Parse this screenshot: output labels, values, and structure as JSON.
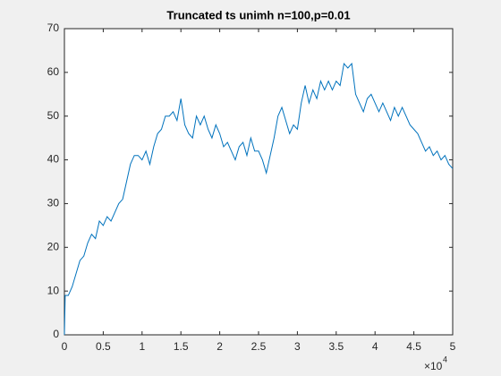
{
  "chart_data": {
    "type": "line",
    "title": "Truncated ts unimh n=100,p=0.01",
    "x": [
      0,
      0.01,
      0.05,
      0.1,
      0.15,
      0.2,
      0.25,
      0.3,
      0.35,
      0.4,
      0.45,
      0.5,
      0.55,
      0.6,
      0.65,
      0.7,
      0.75,
      0.8,
      0.85,
      0.9,
      0.95,
      1.0,
      1.05,
      1.1,
      1.15,
      1.2,
      1.25,
      1.3,
      1.35,
      1.4,
      1.45,
      1.5,
      1.55,
      1.6,
      1.65,
      1.7,
      1.75,
      1.8,
      1.85,
      1.9,
      1.95,
      2.0,
      2.05,
      2.1,
      2.15,
      2.2,
      2.25,
      2.3,
      2.35,
      2.4,
      2.45,
      2.5,
      2.55,
      2.6,
      2.65,
      2.7,
      2.75,
      2.8,
      2.85,
      2.9,
      2.95,
      3.0,
      3.05,
      3.1,
      3.15,
      3.2,
      3.25,
      3.3,
      3.35,
      3.4,
      3.45,
      3.5,
      3.55,
      3.6,
      3.65,
      3.7,
      3.75,
      3.8,
      3.85,
      3.9,
      3.95,
      4.0,
      4.05,
      4.1,
      4.15,
      4.2,
      4.25,
      4.3,
      4.35,
      4.4,
      4.45,
      4.5,
      4.55,
      4.6,
      4.65,
      4.7,
      4.75,
      4.8,
      4.85,
      4.9,
      4.95,
      5.0
    ],
    "values": [
      0,
      9,
      9,
      11,
      14,
      17,
      18,
      21,
      23,
      22,
      26,
      25,
      27,
      26,
      28,
      30,
      31,
      35,
      39,
      41,
      41,
      40,
      42,
      39,
      43,
      46,
      47,
      50,
      50,
      51,
      49,
      54,
      48,
      46,
      45,
      50,
      48,
      50,
      47,
      45,
      48,
      46,
      43,
      44,
      42,
      40,
      43,
      44,
      41,
      45,
      42,
      42,
      40,
      37,
      41,
      45,
      50,
      52,
      49,
      46,
      48,
      47,
      53,
      57,
      53,
      56,
      54,
      58,
      56,
      58,
      56,
      58,
      57,
      62,
      61,
      62,
      55,
      53,
      51,
      54,
      55,
      53,
      51,
      53,
      51,
      49,
      52,
      50,
      52,
      50,
      48,
      47,
      46,
      44,
      42,
      43,
      41,
      42,
      40,
      41,
      39,
      38
    ],
    "color": "#0072bd",
    "xlim": [
      0,
      5
    ],
    "xticks": [
      0,
      0.5,
      1,
      1.5,
      2,
      2.5,
      3,
      3.5,
      4,
      4.5,
      5
    ],
    "x_multiplier": {
      "base": "×10",
      "exponent": "4"
    },
    "ylim": [
      0,
      70
    ],
    "yticks": [
      0,
      10,
      20,
      30,
      40,
      50,
      60,
      70
    ],
    "grid": false
  }
}
